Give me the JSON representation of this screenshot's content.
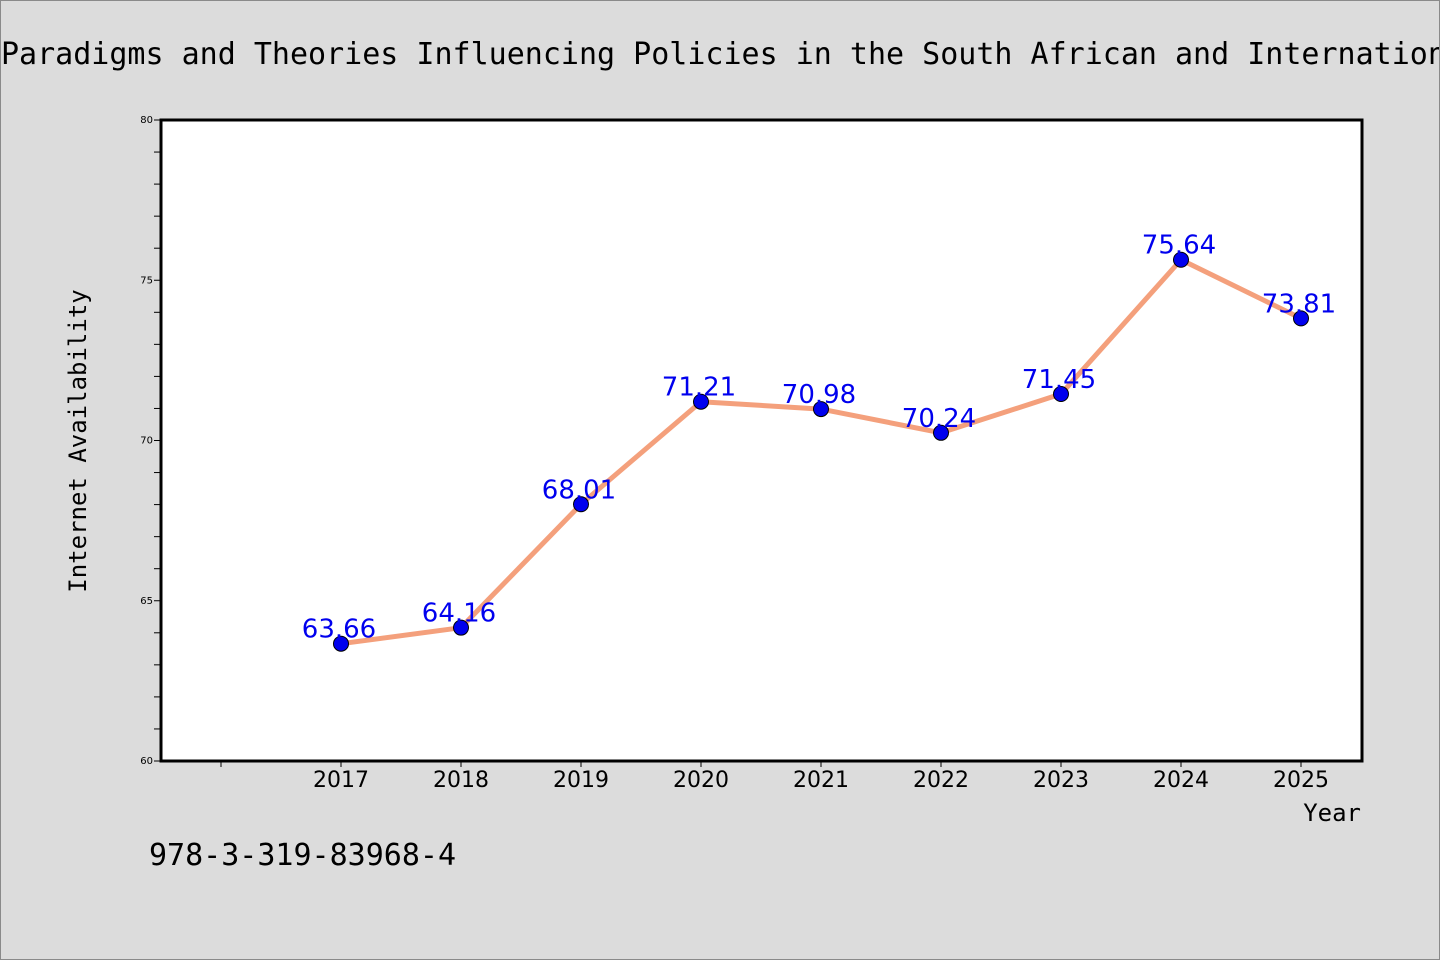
{
  "chart_data": {
    "type": "line",
    "title": "Paradigms and Theories Influencing Policies in the South African and International",
    "xlabel": "Year",
    "ylabel": "Internet Availability",
    "x": [
      "2017",
      "2018",
      "2019",
      "2020",
      "2021",
      "2022",
      "2023",
      "2024",
      "2025"
    ],
    "values": [
      63.66,
      64.16,
      68.01,
      71.21,
      70.98,
      70.24,
      71.45,
      75.64,
      73.81
    ],
    "data_labels": [
      "63.66",
      "64.16",
      "68.01",
      "71.21",
      "70.98",
      "70.24",
      "71.45",
      "75.64",
      "73.81"
    ],
    "ylim": [
      60,
      80
    ],
    "yticks": [
      "60",
      "65",
      "70",
      "75",
      "80"
    ],
    "grid": false,
    "line_color": "#f4a07c",
    "marker_color": "#0000ee",
    "label_color": "#0000ee",
    "background": "#dcdcdc",
    "plot_background": "#ffffff"
  },
  "footer": {
    "isbn": "978-3-319-83968-4"
  }
}
